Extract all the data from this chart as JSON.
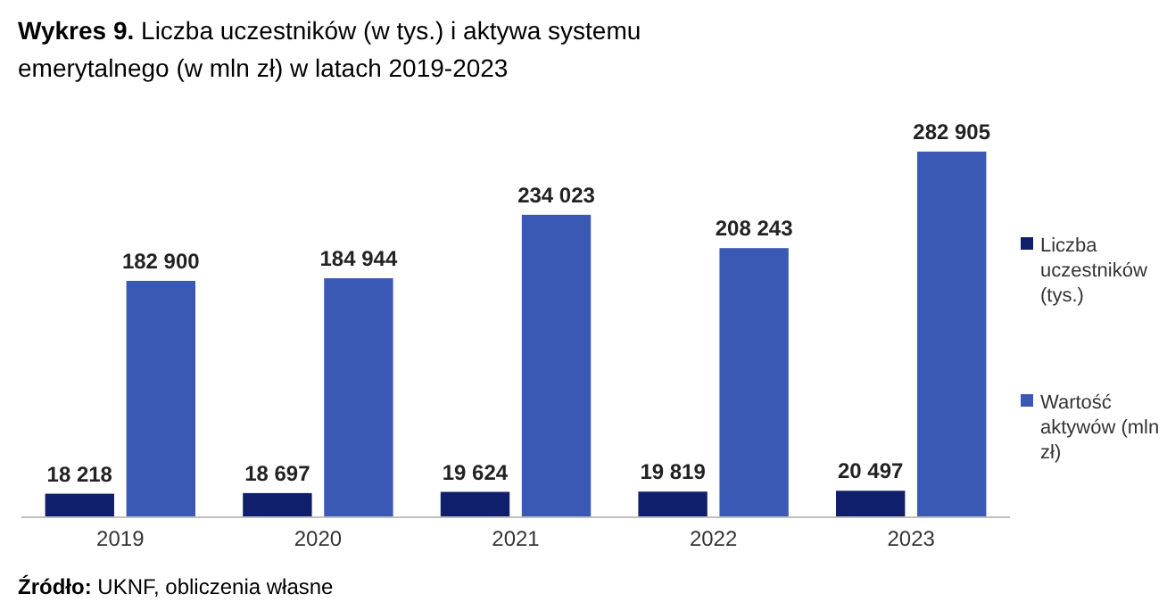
{
  "chart_data": {
    "type": "bar",
    "title": "Wykres 9. Liczba uczestników (w tys.) i aktywa systemu emerytalnego (w mln zł) w latach 2019-2023",
    "categories": [
      "2019",
      "2020",
      "2021",
      "2022",
      "2023"
    ],
    "series": [
      {
        "name": "Liczba uczestników (tys.)",
        "color": "#0f1f6b",
        "values": [
          18218,
          18697,
          19624,
          19819,
          20497
        ]
      },
      {
        "name": "Wartość aktywów (mln zł)",
        "color": "#3a59b4",
        "values": [
          182900,
          184944,
          234023,
          208243,
          282905
        ]
      }
    ],
    "value_labels": [
      [
        "18 218",
        "18 697",
        "19 624",
        "19 819",
        "20 497"
      ],
      [
        "182 900",
        "184 944",
        "234 023",
        "208 243",
        "282 905"
      ]
    ],
    "data_labels": true,
    "legend": "right",
    "annotations": [
      "Źródło: UKNF, obliczenia własne"
    ]
  }
}
